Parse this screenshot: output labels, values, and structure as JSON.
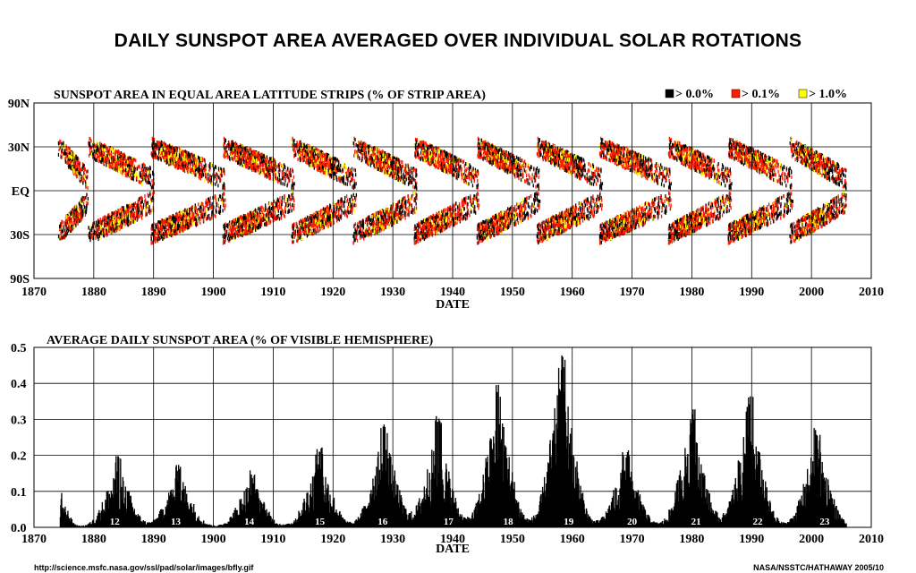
{
  "title": "DAILY SUNSPOT AREA AVERAGED OVER INDIVIDUAL SOLAR ROTATIONS",
  "footer_left": "http://science.msfc.nasa.gov/ssl/pad/solar/images/bfly.gif",
  "footer_right": "NASA/NSSTC/HATHAWAY 2005/10",
  "colors": {
    "black": "#000000",
    "red": "#ff1a00",
    "yellow": "#ffff00"
  },
  "chart_data": [
    {
      "type": "heatmap",
      "title": "SUNSPOT AREA IN EQUAL AREA LATITUDE STRIPS (% OF STRIP AREA)",
      "xlabel": "DATE",
      "ylabel": "",
      "xlim": [
        1870,
        2010
      ],
      "x_ticks": [
        "1870",
        "1880",
        "1890",
        "1900",
        "1910",
        "1920",
        "1930",
        "1940",
        "1950",
        "1960",
        "1970",
        "1980",
        "1990",
        "2000",
        "2010"
      ],
      "y_ticks": [
        "90N",
        "30N",
        "EQ",
        "30S",
        "90S"
      ],
      "y_scale": "sine of latitude (equal area)",
      "legend": [
        {
          "label": "> 0.0%",
          "color": "#000000"
        },
        {
          "label": "> 0.1%",
          "color": "#ff1a00"
        },
        {
          "label": "> 1.0%",
          "color": "#ffff00"
        }
      ],
      "legend_position": "top-right",
      "cycles": [
        {
          "start": 1874.0,
          "end": 1879.0,
          "max": 1876.5
        },
        {
          "start": 1879.0,
          "end": 1890.0,
          "max": 1883.9
        },
        {
          "start": 1889.5,
          "end": 1902.0,
          "max": 1894.1
        },
        {
          "start": 1901.5,
          "end": 1913.5,
          "max": 1906.2
        },
        {
          "start": 1913.0,
          "end": 1923.8,
          "max": 1917.6
        },
        {
          "start": 1923.3,
          "end": 1934.0,
          "max": 1928.4
        },
        {
          "start": 1933.5,
          "end": 1944.4,
          "max": 1937.4
        },
        {
          "start": 1944.0,
          "end": 1954.5,
          "max": 1947.5
        },
        {
          "start": 1954.0,
          "end": 1965.0,
          "max": 1958.2
        },
        {
          "start": 1964.5,
          "end": 1976.5,
          "max": 1968.9
        },
        {
          "start": 1976.0,
          "end": 1986.6,
          "max": 1979.9
        },
        {
          "start": 1986.0,
          "end": 1996.8,
          "max": 1989.6
        },
        {
          "start": 1996.3,
          "end": 2005.8,
          "max": 2000.8
        }
      ],
      "grid": true
    },
    {
      "type": "bar",
      "title": "AVERAGE DAILY SUNSPOT AREA (% OF VISIBLE HEMISPHERE)",
      "xlabel": "DATE",
      "ylabel": "",
      "xlim": [
        1870,
        2010
      ],
      "ylim": [
        0.0,
        0.5
      ],
      "x_ticks": [
        "1870",
        "1880",
        "1890",
        "1900",
        "1910",
        "1920",
        "1930",
        "1940",
        "1950",
        "1960",
        "1970",
        "1980",
        "1990",
        "2000",
        "2010"
      ],
      "y_ticks": [
        "0.0",
        "0.1",
        "0.2",
        "0.3",
        "0.4",
        "0.5"
      ],
      "grid": true,
      "cycle_labels": [
        {
          "label": "12",
          "x": 1883.5
        },
        {
          "label": "13",
          "x": 1893.7
        },
        {
          "label": "14",
          "x": 1906.0
        },
        {
          "label": "15",
          "x": 1917.8
        },
        {
          "label": "16",
          "x": 1928.3
        },
        {
          "label": "17",
          "x": 1939.3
        },
        {
          "label": "18",
          "x": 1949.3
        },
        {
          "label": "19",
          "x": 1959.4
        },
        {
          "label": "20",
          "x": 1970.0
        },
        {
          "label": "21",
          "x": 1980.7
        },
        {
          "label": "22",
          "x": 1991.0
        },
        {
          "label": "23",
          "x": 2002.2
        }
      ],
      "cycle_peaks": [
        {
          "x": 1874.5,
          "y": 0.1
        },
        {
          "x": 1883.9,
          "y": 0.2
        },
        {
          "x": 1894.1,
          "y": 0.18
        },
        {
          "x": 1906.2,
          "y": 0.16
        },
        {
          "x": 1917.6,
          "y": 0.23
        },
        {
          "x": 1928.4,
          "y": 0.3
        },
        {
          "x": 1937.4,
          "y": 0.31
        },
        {
          "x": 1947.5,
          "y": 0.41
        },
        {
          "x": 1958.2,
          "y": 0.51
        },
        {
          "x": 1968.9,
          "y": 0.22
        },
        {
          "x": 1979.9,
          "y": 0.34
        },
        {
          "x": 1989.6,
          "y": 0.37
        },
        {
          "x": 2000.8,
          "y": 0.28
        }
      ]
    }
  ]
}
